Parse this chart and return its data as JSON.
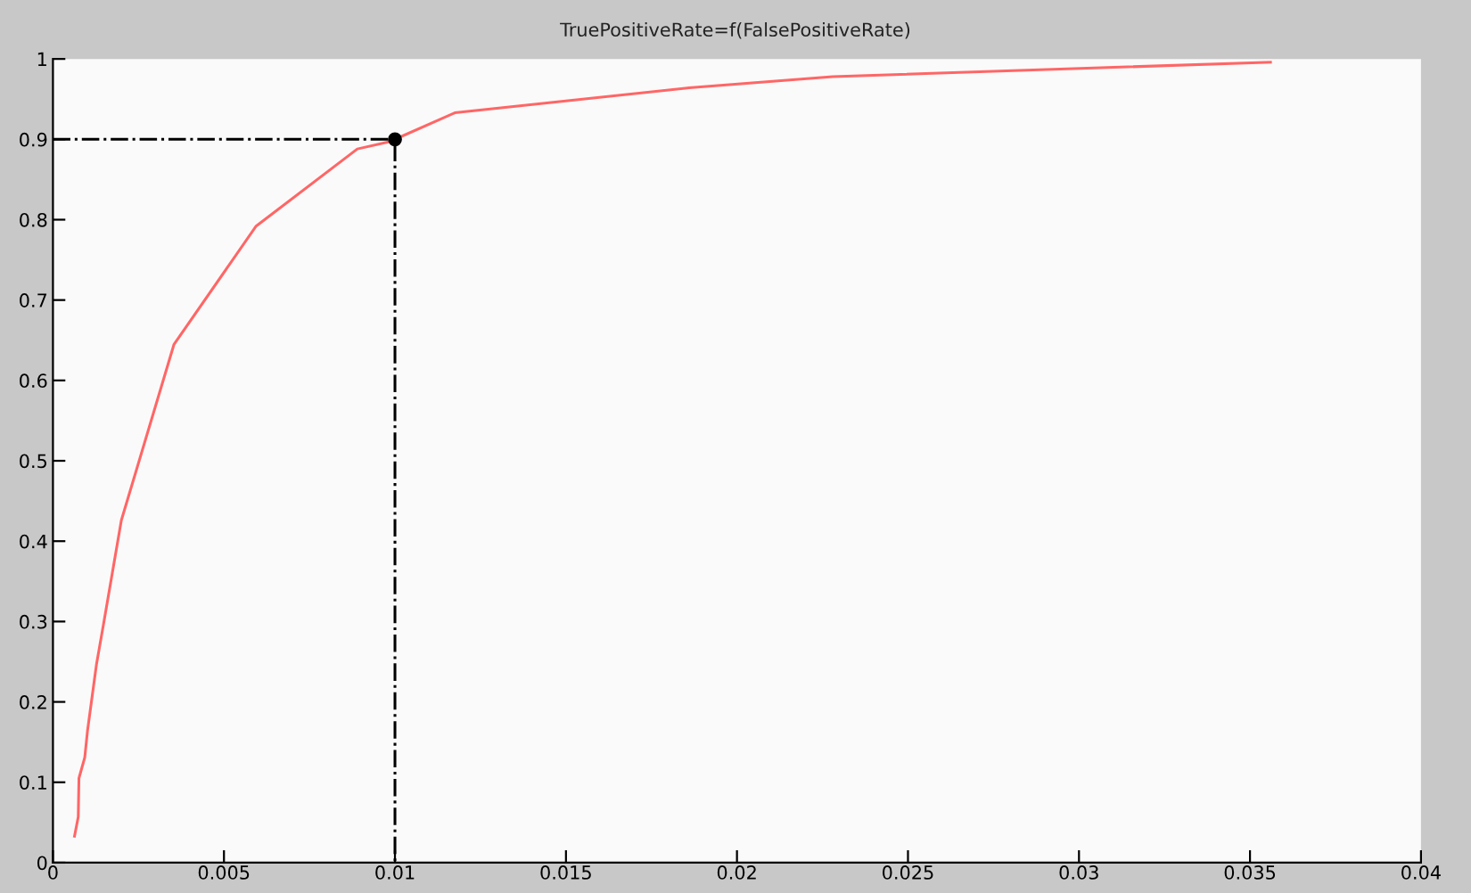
{
  "chart_data": {
    "type": "line",
    "title": "TruePositiveRate=f(FalsePositiveRate)",
    "xlim": [
      0,
      0.04
    ],
    "xticks": [
      0,
      0.005,
      0.01,
      0.015,
      0.02,
      0.025,
      0.03,
      0.035,
      0.04
    ],
    "ylim": [
      0,
      1
    ],
    "yticks": [
      0,
      0.1,
      0.2,
      0.3,
      0.4,
      0.5,
      0.6,
      0.7,
      0.8,
      0.9,
      1
    ],
    "grid": false,
    "series": [
      {
        "color": "#ff6666",
        "line_style": "solid",
        "marker": "none",
        "x": [
          0.00063,
          0.00074,
          0.00076,
          0.00093,
          0.00101,
          0.00127,
          0.00148,
          0.002,
          0.00354,
          0.00594,
          0.0089,
          0.00984,
          0.01175,
          0.0186,
          0.0228,
          0.0356
        ],
        "values": [
          0.033,
          0.057,
          0.105,
          0.131,
          0.164,
          0.246,
          0.297,
          0.426,
          0.645,
          0.792,
          0.888,
          0.897,
          0.933,
          0.964,
          0.978,
          0.996
        ]
      },
      {
        "type": "line",
        "color": "#000000",
        "line_style": "dashdot",
        "marker": "none",
        "x": [
          0,
          0.01,
          0.01
        ],
        "values": [
          0.9,
          0.9,
          0
        ]
      },
      {
        "type": "scatter",
        "color": "#000000",
        "marker": "circle",
        "x": [
          0.01
        ],
        "values": [
          0.9
        ]
      }
    ]
  }
}
